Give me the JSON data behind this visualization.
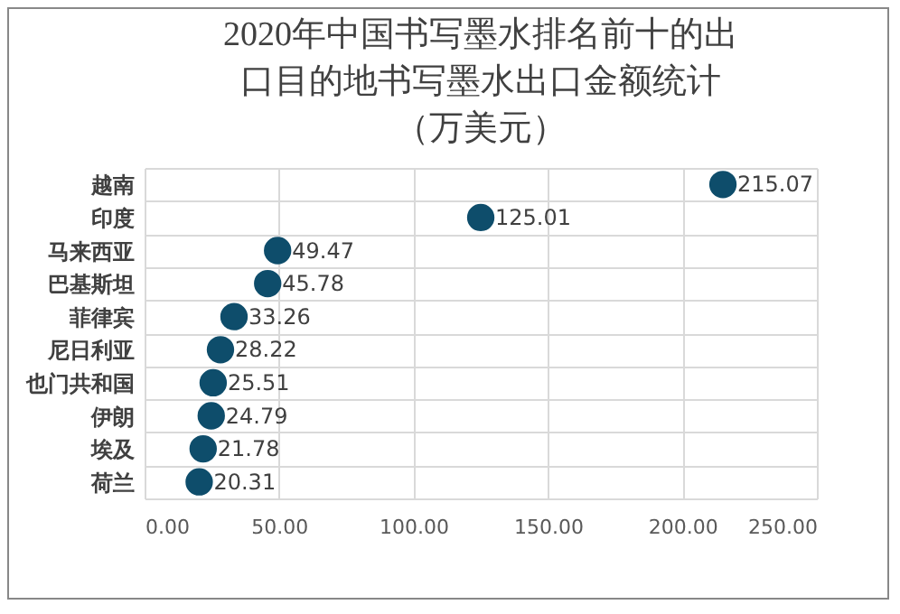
{
  "chart_data": {
    "type": "scatter",
    "orientation": "horizontal",
    "title": "2020年中国书写墨水排名前十的出口目的地书写墨水出口金额统计（万美元）",
    "categories": [
      "越南",
      "印度",
      "马来西亚",
      "巴基斯坦",
      "菲律宾",
      "尼日利亚",
      "也门共和国",
      "伊朗",
      "埃及",
      "荷兰"
    ],
    "values": [
      215.07,
      125.01,
      49.47,
      45.78,
      33.26,
      28.22,
      25.51,
      24.79,
      21.78,
      20.31
    ],
    "color": "#0e4d6b",
    "marker": "circle",
    "data_labels": true,
    "grid": true,
    "xlim": [
      0,
      250
    ],
    "xticks": [
      {
        "value": 0,
        "label": "0.00"
      },
      {
        "value": 50,
        "label": "50.00"
      },
      {
        "value": 100,
        "label": "100.00"
      },
      {
        "value": 150,
        "label": "150.00"
      },
      {
        "value": 200,
        "label": "200.00"
      },
      {
        "value": 250,
        "label": "250.00"
      }
    ]
  }
}
